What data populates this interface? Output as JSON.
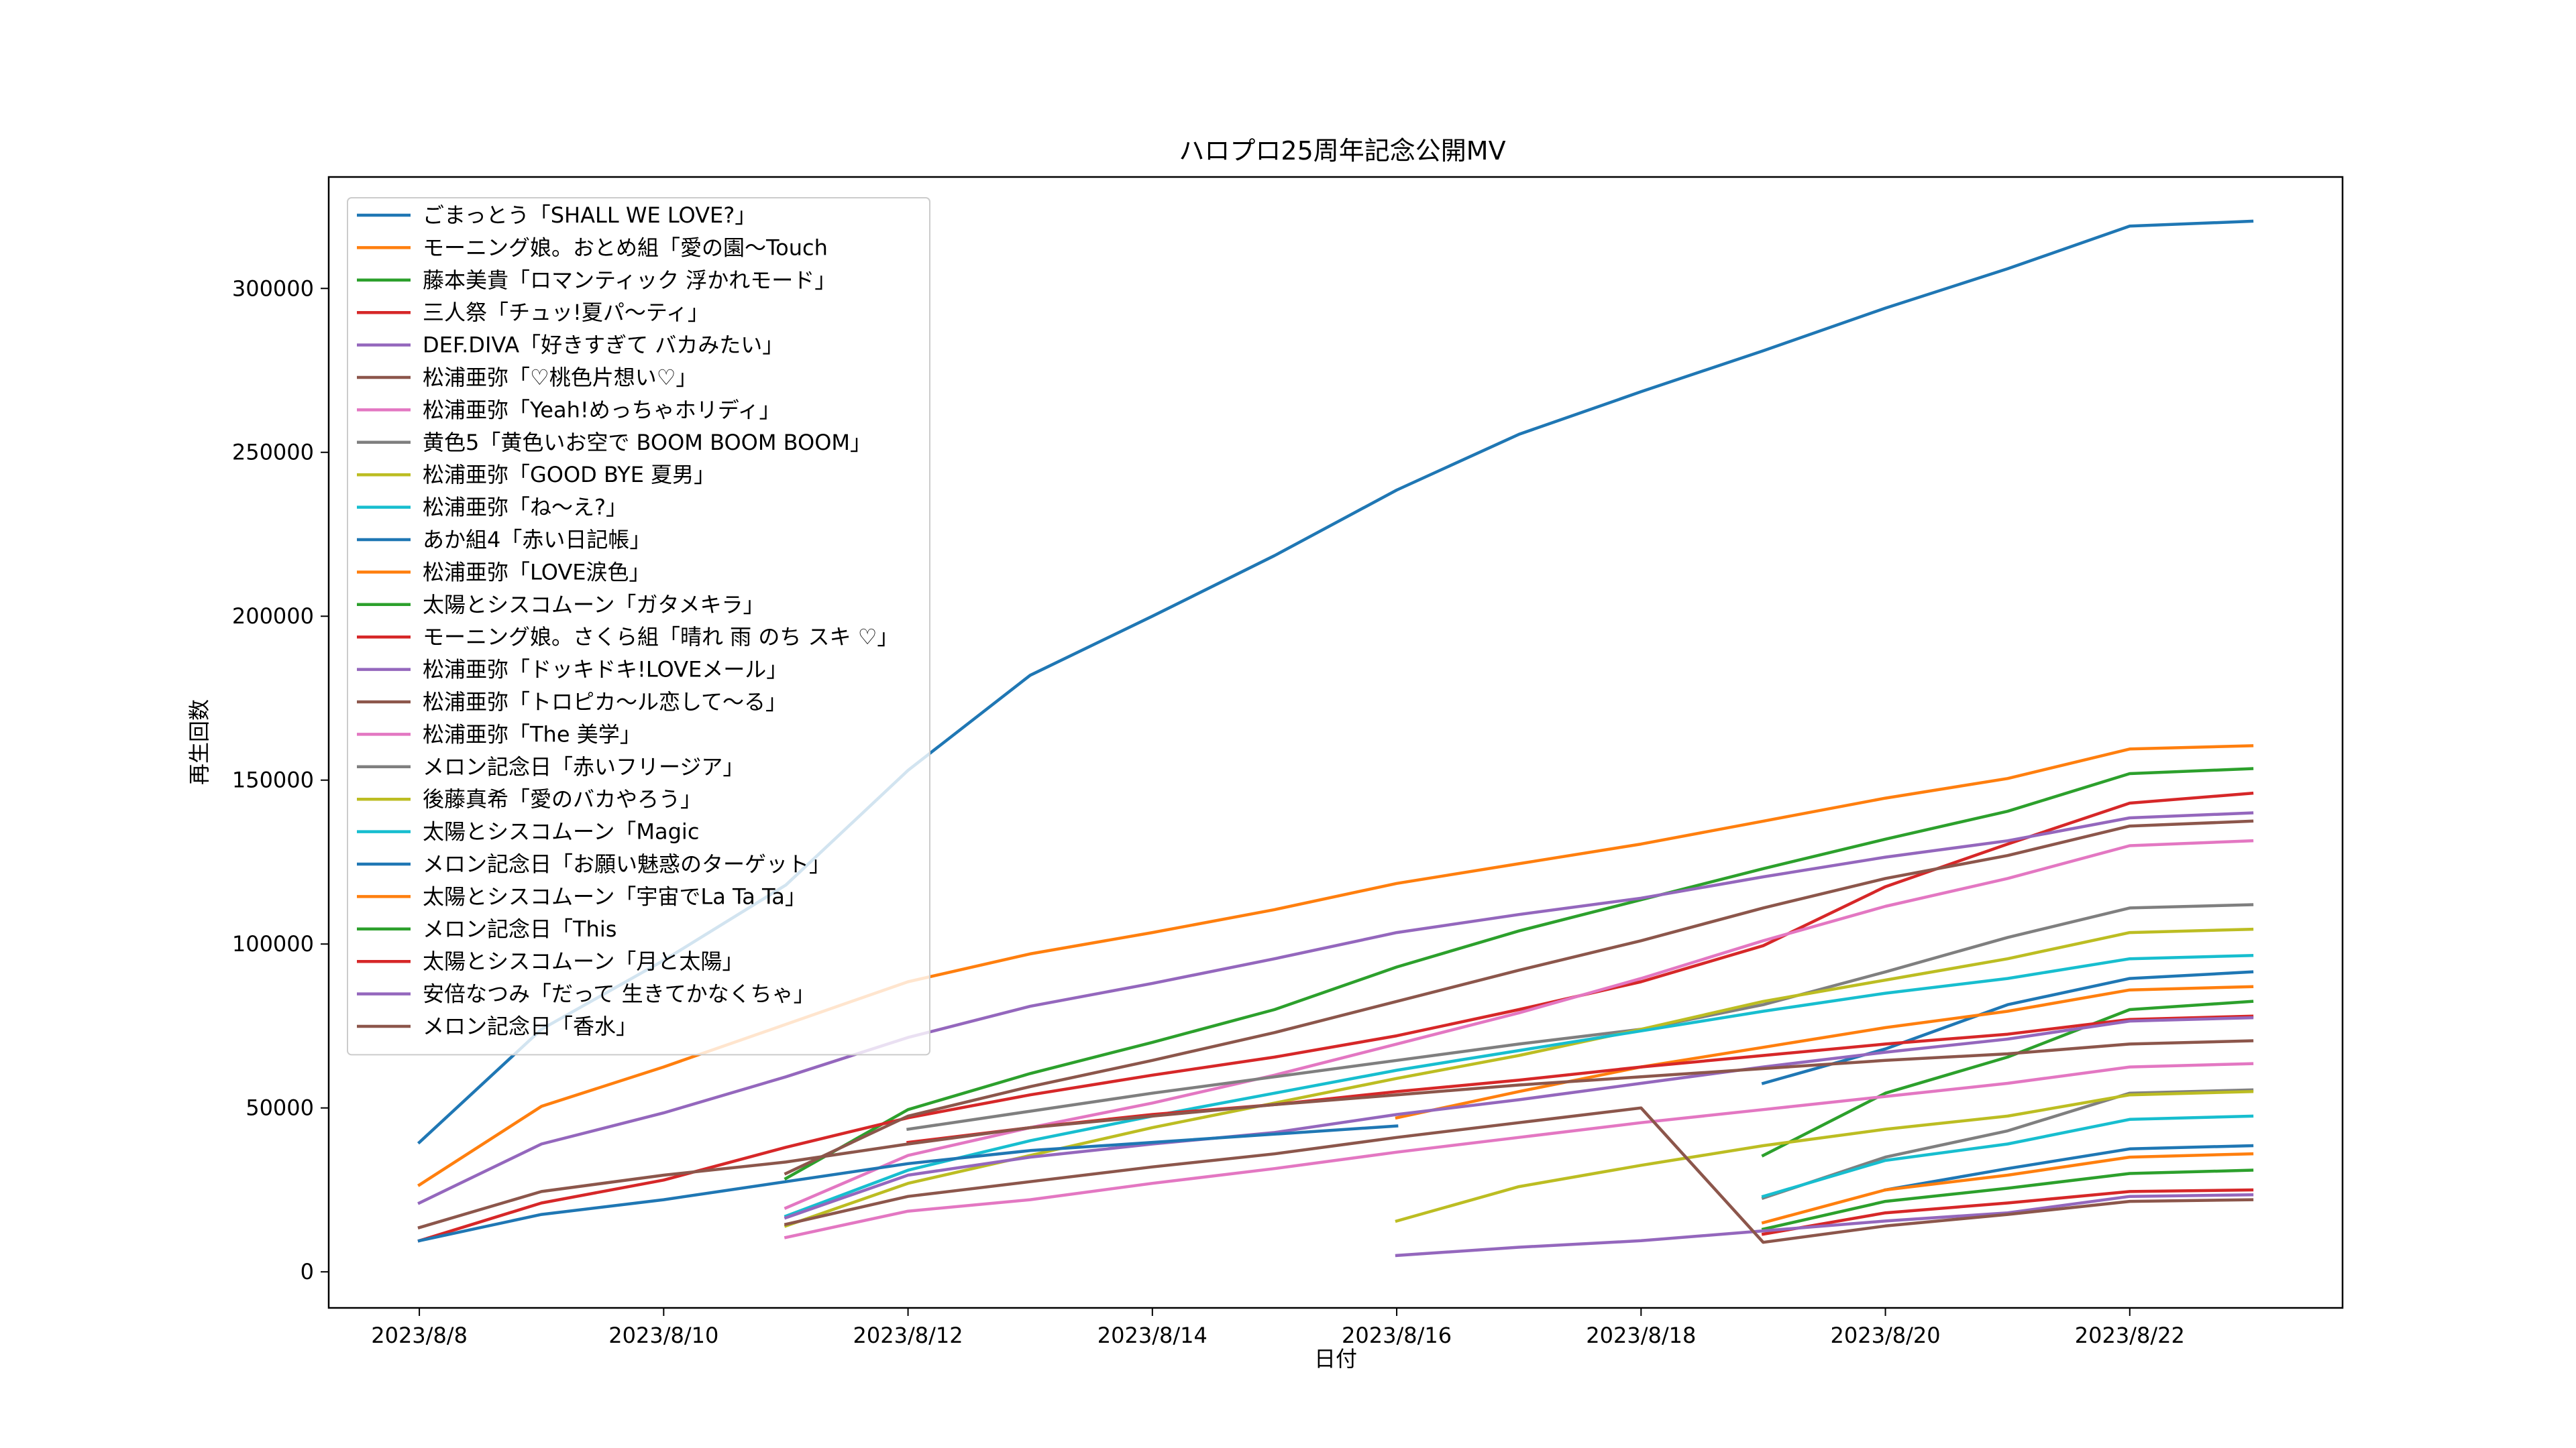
{
  "chart_data": {
    "type": "line",
    "title": "ハロプロ25周年記念公開MV",
    "xlabel": "日付",
    "ylabel": "再生回数",
    "x": [
      "2023/8/8",
      "2023/8/9",
      "2023/8/10",
      "2023/8/11",
      "2023/8/12",
      "2023/8/13",
      "2023/8/14",
      "2023/8/15",
      "2023/8/16",
      "2023/8/17",
      "2023/8/18",
      "2023/8/19",
      "2023/8/20",
      "2023/8/21",
      "2023/8/22",
      "2023/8/23"
    ],
    "xticks": [
      "2023/8/8",
      "2023/8/10",
      "2023/8/12",
      "2023/8/14",
      "2023/8/16",
      "2023/8/18",
      "2023/8/20",
      "2023/8/22"
    ],
    "ylim": [
      -11000,
      334000
    ],
    "yticks": [
      0,
      50000,
      100000,
      150000,
      200000,
      250000,
      300000
    ],
    "grid": false,
    "legend_position": "upper-left",
    "series": [
      {
        "name": "ごまっとう「SHALL WE LOVE?」",
        "color": "#1f77b4",
        "values": [
          39500,
          74000,
          95000,
          118000,
          153000,
          182000,
          200000,
          218500,
          238500,
          255500,
          268500,
          281000,
          294000,
          306000,
          319000,
          320500
        ]
      },
      {
        "name": "モーニング娘。おとめ組「愛の園〜Touch",
        "color": "#ff7f0e",
        "values": [
          26500,
          50500,
          62500,
          75500,
          88500,
          97000,
          103500,
          110500,
          118500,
          124500,
          130500,
          137500,
          144500,
          150500,
          159500,
          160500
        ]
      },
      {
        "name": "藤本美貴「ロマンティック 浮かれモード」",
        "color": "#2ca02c",
        "values": [
          null,
          null,
          null,
          28500,
          49500,
          60500,
          70000,
          80000,
          93000,
          104000,
          113500,
          123000,
          132000,
          140500,
          152000,
          153500
        ]
      },
      {
        "name": "三人祭「チュッ!夏パ〜ティ」",
        "color": "#d62728",
        "values": [
          9500,
          21000,
          28000,
          38000,
          47000,
          54000,
          60000,
          65500,
          72000,
          80000,
          88500,
          99500,
          117500,
          130500,
          143000,
          146000
        ]
      },
      {
        "name": "DEF.DIVA「好きすぎて バカみたい」",
        "color": "#9467bd",
        "values": [
          21000,
          39000,
          48500,
          59500,
          71500,
          81000,
          88000,
          95500,
          103500,
          109000,
          114000,
          120500,
          126500,
          131500,
          138500,
          140000
        ]
      },
      {
        "name": "松浦亜弥「♡桃色片想い♡」",
        "color": "#8c564b",
        "values": [
          null,
          null,
          null,
          30000,
          47500,
          56500,
          64500,
          73000,
          82500,
          92000,
          101000,
          111000,
          120000,
          127000,
          136000,
          137500
        ]
      },
      {
        "name": "松浦亜弥「Yeah!めっちゃホリディ」",
        "color": "#e377c2",
        "values": [
          null,
          null,
          null,
          19500,
          35500,
          44000,
          51500,
          60000,
          69500,
          79000,
          89500,
          101000,
          111500,
          120000,
          130000,
          131500
        ]
      },
      {
        "name": "黄色5「黄色いお空で BOOM BOOM BOOM」",
        "color": "#7f7f7f",
        "values": [
          null,
          null,
          null,
          null,
          43500,
          49000,
          54500,
          59500,
          64500,
          69500,
          74000,
          81500,
          91500,
          102000,
          111000,
          112000
        ]
      },
      {
        "name": "松浦亜弥「GOOD BYE 夏男」",
        "color": "#bcbd22",
        "values": [
          null,
          null,
          null,
          14000,
          27000,
          35500,
          44000,
          51500,
          59000,
          66000,
          74000,
          82500,
          89000,
          95500,
          103500,
          104500
        ]
      },
      {
        "name": "松浦亜弥「ね〜え?」",
        "color": "#17becf",
        "values": [
          null,
          null,
          null,
          17000,
          31000,
          40000,
          47500,
          54500,
          61500,
          67500,
          73500,
          79500,
          85000,
          89500,
          95500,
          96500
        ]
      },
      {
        "name": "あか組4「赤い日記帳」",
        "color": "#1f77b4",
        "values": [
          null,
          null,
          null,
          null,
          null,
          null,
          null,
          null,
          null,
          null,
          null,
          57500,
          68000,
          81500,
          89500,
          91500
        ]
      },
      {
        "name": "松浦亜弥「LOVE涙色」",
        "color": "#ff7f0e",
        "values": [
          null,
          null,
          null,
          null,
          null,
          null,
          null,
          null,
          47000,
          55000,
          62500,
          68500,
          74500,
          79500,
          86000,
          87000
        ]
      },
      {
        "name": "太陽とシスコムーン「ガタメキラ」",
        "color": "#2ca02c",
        "values": [
          null,
          null,
          null,
          null,
          null,
          null,
          null,
          null,
          null,
          null,
          null,
          35500,
          54500,
          65500,
          80000,
          82500
        ]
      },
      {
        "name": "モーニング娘。さくら組「晴れ 雨 のち スキ ♡」",
        "color": "#d62728",
        "values": [
          null,
          null,
          null,
          null,
          39500,
          44000,
          48000,
          51000,
          55000,
          58500,
          62500,
          66000,
          69500,
          72500,
          77000,
          78000
        ]
      },
      {
        "name": "松浦亜弥「ドッキドキ!LOVEメール」",
        "color": "#9467bd",
        "values": [
          null,
          null,
          null,
          16500,
          29500,
          35000,
          39000,
          42500,
          48000,
          52500,
          57500,
          62500,
          67000,
          71000,
          76500,
          77500
        ]
      },
      {
        "name": "松浦亜弥「トロピカ〜ル恋して〜る」",
        "color": "#8c564b",
        "values": [
          13500,
          24500,
          29500,
          33500,
          39000,
          44000,
          47500,
          51000,
          54000,
          57000,
          59500,
          62000,
          64500,
          66500,
          69500,
          70500
        ]
      },
      {
        "name": "松浦亜弥「The 美学」",
        "color": "#e377c2",
        "values": [
          null,
          null,
          null,
          10500,
          18500,
          22000,
          27000,
          31500,
          36500,
          41000,
          45500,
          49500,
          53500,
          57500,
          62500,
          63500
        ]
      },
      {
        "name": "メロン記念日「赤いフリージア」",
        "color": "#7f7f7f",
        "values": [
          null,
          null,
          null,
          null,
          null,
          null,
          null,
          null,
          null,
          null,
          null,
          22500,
          35000,
          43000,
          54500,
          55500
        ]
      },
      {
        "name": "後藤真希「愛のバカやろう」",
        "color": "#bcbd22",
        "values": [
          null,
          null,
          null,
          null,
          null,
          null,
          null,
          null,
          15500,
          26000,
          32500,
          38500,
          43500,
          47500,
          54000,
          55000
        ]
      },
      {
        "name": "太陽とシスコムーン「Magic",
        "color": "#17becf",
        "values": [
          null,
          null,
          null,
          null,
          null,
          null,
          null,
          null,
          null,
          null,
          null,
          23000,
          34000,
          39000,
          46500,
          47500
        ]
      },
      {
        "name": "メロン記念日「お願い魅惑のターゲット」",
        "color": "#1f77b4",
        "values": [
          9500,
          17500,
          22000,
          27500,
          33000,
          37000,
          39500,
          42000,
          44500,
          null,
          null,
          null,
          25000,
          31500,
          37500,
          38500
        ]
      },
      {
        "name": "太陽とシスコムーン「宇宙でLa Ta Ta」",
        "color": "#ff7f0e",
        "values": [
          null,
          null,
          null,
          null,
          null,
          null,
          null,
          null,
          null,
          null,
          null,
          15000,
          25000,
          29500,
          35000,
          36000
        ]
      },
      {
        "name": "メロン記念日「This",
        "color": "#2ca02c",
        "values": [
          null,
          null,
          null,
          null,
          null,
          null,
          null,
          null,
          null,
          null,
          null,
          13000,
          21500,
          25500,
          30000,
          31000
        ]
      },
      {
        "name": "太陽とシスコムーン「月と太陽」",
        "color": "#d62728",
        "values": [
          null,
          null,
          null,
          null,
          null,
          null,
          null,
          null,
          null,
          null,
          null,
          11500,
          18000,
          21000,
          24500,
          25000
        ]
      },
      {
        "name": "安倍なつみ「だって 生きてかなくちゃ」",
        "color": "#9467bd",
        "values": [
          null,
          null,
          null,
          null,
          null,
          null,
          null,
          null,
          5000,
          7500,
          9500,
          12500,
          15500,
          18000,
          23000,
          23500
        ]
      },
      {
        "name": "メロン記念日「香水」",
        "color": "#8c564b",
        "values": [
          null,
          null,
          null,
          14500,
          23000,
          27500,
          32000,
          36000,
          41000,
          45500,
          50000,
          9000,
          14000,
          17500,
          21500,
          22000
        ]
      }
    ]
  }
}
